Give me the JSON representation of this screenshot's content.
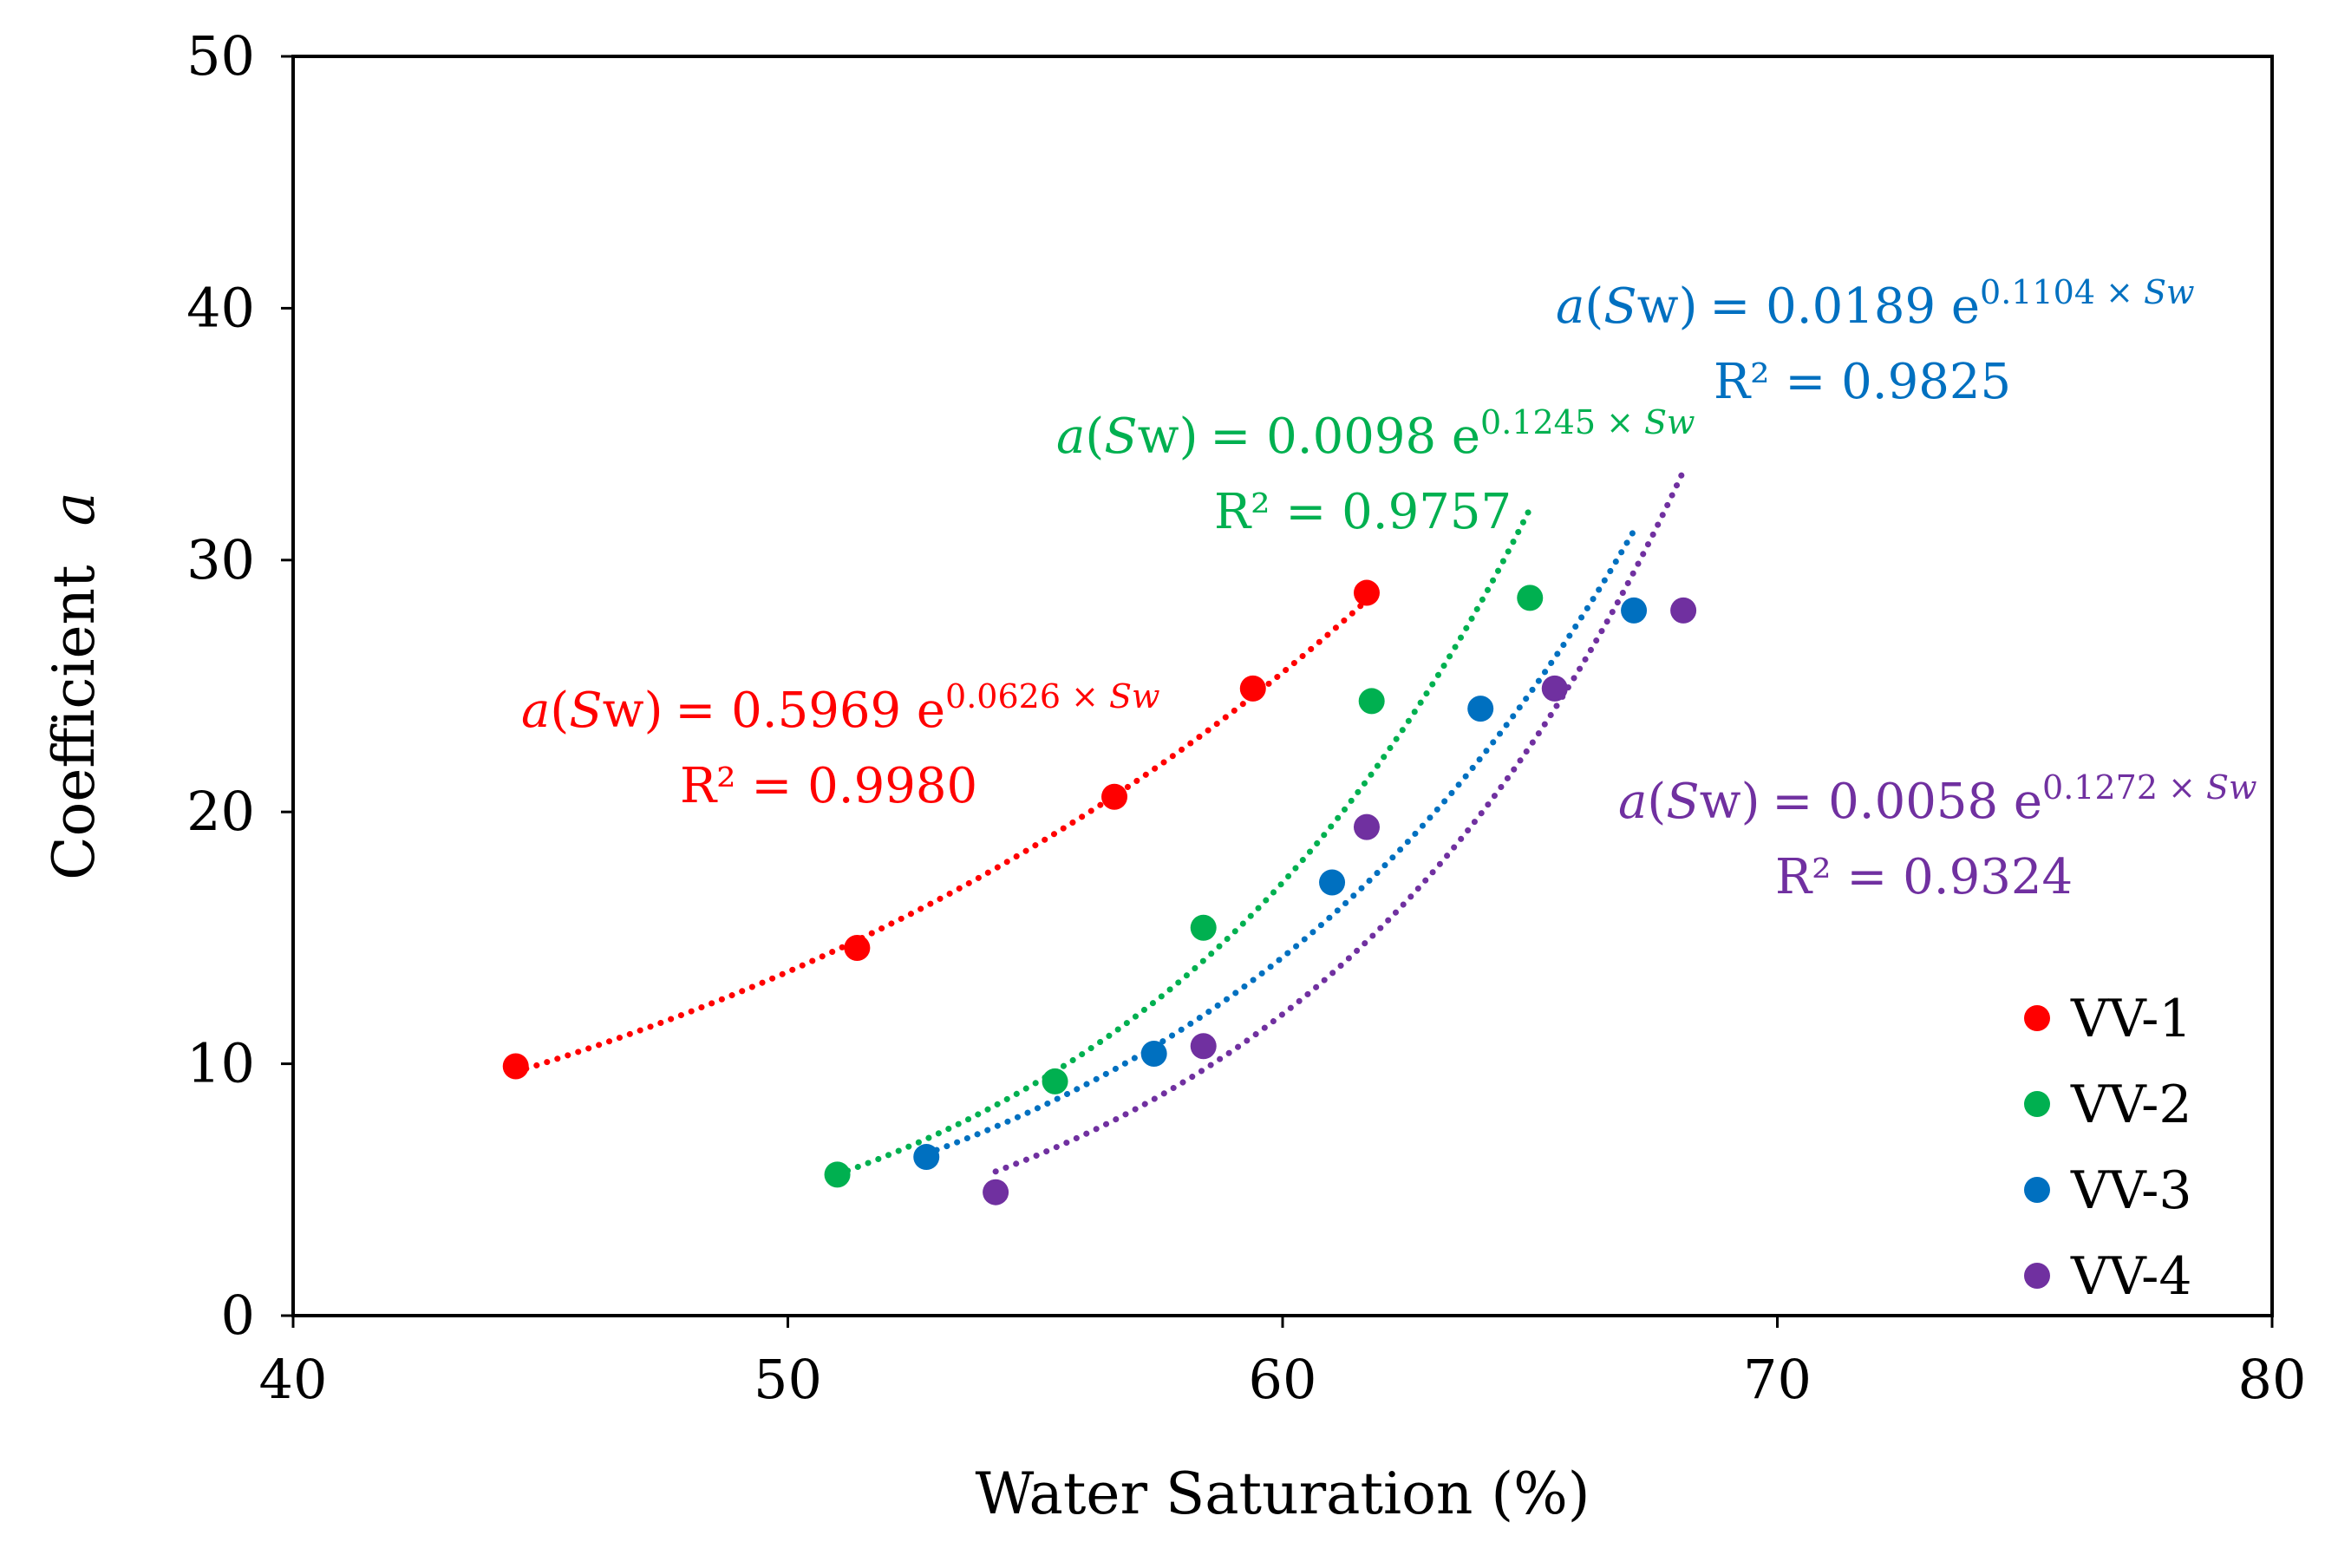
{
  "chart_data": {
    "type": "scatter",
    "xlabel": "Water Saturation (%)",
    "ylabel_prefix": "Coefficient",
    "ylabel_var": "a",
    "xlim": [
      40,
      80
    ],
    "ylim": [
      0,
      50
    ],
    "x_ticks": [
      40,
      50,
      60,
      70,
      80
    ],
    "y_ticks": [
      0,
      10,
      20,
      30,
      40,
      50
    ],
    "grid": false,
    "legend_position": "bottom-right",
    "series": [
      {
        "name": "VV-1",
        "color": "#ff0000",
        "x": [
          44.5,
          51.4,
          56.6,
          59.4,
          61.7
        ],
        "y": [
          9.9,
          14.6,
          20.6,
          24.9,
          28.7
        ],
        "trendline": {
          "type": "exponential",
          "a": 0.5969,
          "b": 0.0626,
          "x_range": [
            44.5,
            61.7
          ]
        },
        "equation": {
          "var": "a",
          "open": "(",
          "sw1": "S",
          "sw2": "w",
          "close": ")",
          "coef": "= 0.5969 e",
          "exp": "0.0626 × ",
          "exp_sw": "Sw"
        },
        "r2": "R² = 0.9980"
      },
      {
        "name": "VV-2",
        "color": "#00b050",
        "x": [
          51.0,
          55.4,
          58.4,
          61.8,
          65.0
        ],
        "y": [
          5.6,
          9.3,
          15.4,
          24.4,
          28.5
        ],
        "trendline": {
          "type": "exponential",
          "a": 0.0098,
          "b": 0.1245,
          "x_range": [
            51.0,
            65.0
          ]
        },
        "equation": {
          "var": "a",
          "open": "(",
          "sw1": "S",
          "sw2": "w",
          "close": ")",
          "coef": "= 0.0098 e",
          "exp": "0.1245 × ",
          "exp_sw": "Sw"
        },
        "r2": "R² = 0.9757"
      },
      {
        "name": "VV-3",
        "color": "#0070c0",
        "x": [
          52.8,
          57.4,
          61.0,
          64.0,
          67.1
        ],
        "y": [
          6.3,
          10.4,
          17.2,
          24.1,
          28.0
        ],
        "trendline": {
          "type": "exponential",
          "a": 0.0189,
          "b": 0.1104,
          "x_range": [
            52.8,
            67.1
          ]
        },
        "equation": {
          "var": "a",
          "open": "(",
          "sw1": "S",
          "sw2": "w",
          "close": ")",
          "coef": "= 0.0189 e",
          "exp": "0.1104 × ",
          "exp_sw": "Sw"
        },
        "r2": "R² = 0.9825"
      },
      {
        "name": "VV-4",
        "color": "#7030a0",
        "x": [
          54.2,
          58.4,
          61.7,
          65.5,
          68.1
        ],
        "y": [
          4.9,
          10.7,
          19.4,
          24.9,
          28.0
        ],
        "trendline": {
          "type": "exponential",
          "a": 0.0058,
          "b": 0.1272,
          "x_range": [
            54.2,
            68.1
          ]
        },
        "equation": {
          "var": "a",
          "open": "(",
          "sw1": "S",
          "sw2": "w",
          "close": ")",
          "coef": "= 0.0058 e",
          "exp": "0.1272 × ",
          "exp_sw": "Sw"
        },
        "r2": "R² = 0.9324"
      }
    ]
  }
}
